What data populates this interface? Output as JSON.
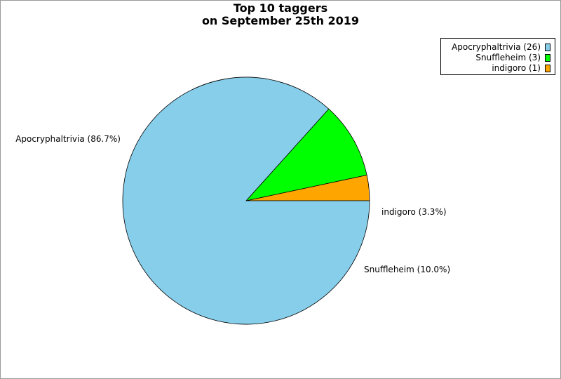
{
  "chart_data": {
    "type": "pie",
    "title_lines": [
      "Top 10 taggers",
      "on September 25th 2019"
    ],
    "slices": [
      {
        "name": "indigoro",
        "value": 1,
        "color": "#ffa500",
        "label": "indigoro (3.3%)",
        "legend": "indigoro (1)"
      },
      {
        "name": "Snuffleheim",
        "value": 3,
        "color": "#00ff00",
        "label": "Snuffleheim (10.0%)",
        "legend": "Snuffleheim (3)"
      },
      {
        "name": "Apocryphaltrivia",
        "value": 26,
        "color": "#87ceeb",
        "label": "Apocryphaltrivia (86.7%)",
        "legend": "Apocryphaltrivia (26)"
      }
    ],
    "legend_order": [
      2,
      1,
      0
    ],
    "legend_position": "top-right"
  }
}
